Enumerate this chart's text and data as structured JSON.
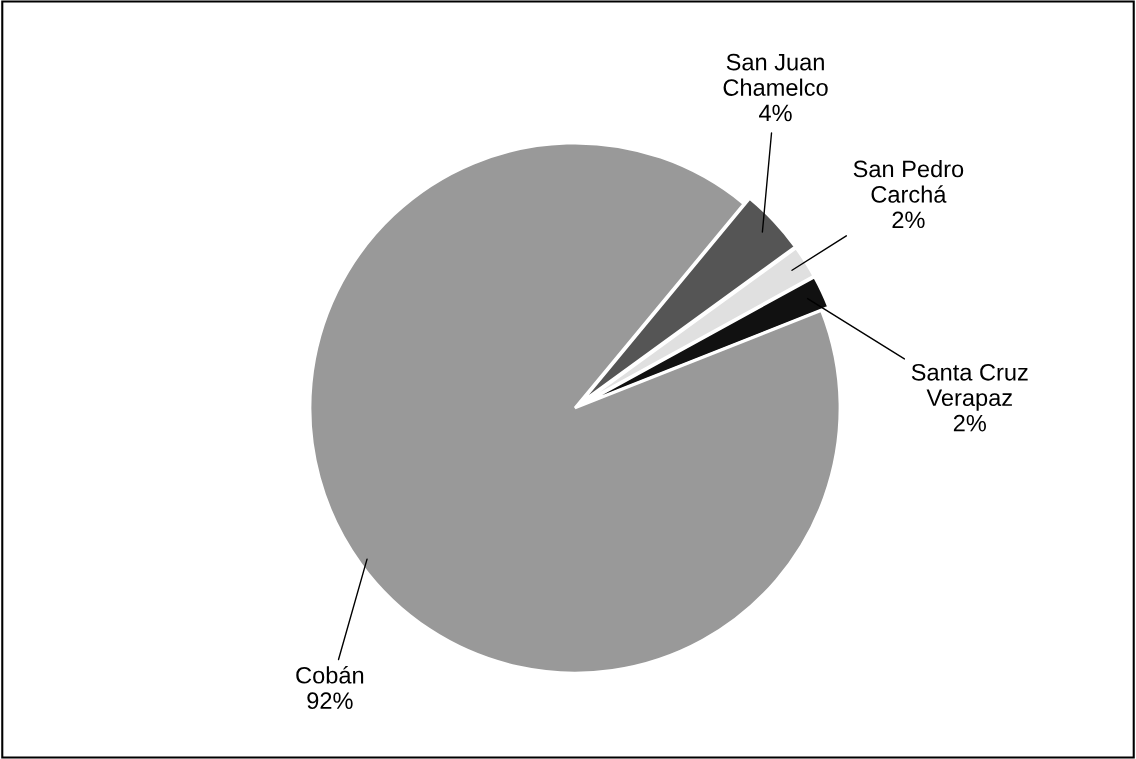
{
  "chart_data": {
    "type": "pie",
    "categories": [
      "Santa Cruz Verapaz",
      "San Pedro Carchá",
      "San Juan Chamelco",
      "Cobán"
    ],
    "values": [
      2,
      2,
      4,
      92
    ],
    "value_labels": [
      "2%",
      "2%",
      "4%",
      "92%"
    ],
    "colors": [
      "#111111",
      "#e0e0e0",
      "#555555",
      "#999999"
    ],
    "legend": false
  }
}
